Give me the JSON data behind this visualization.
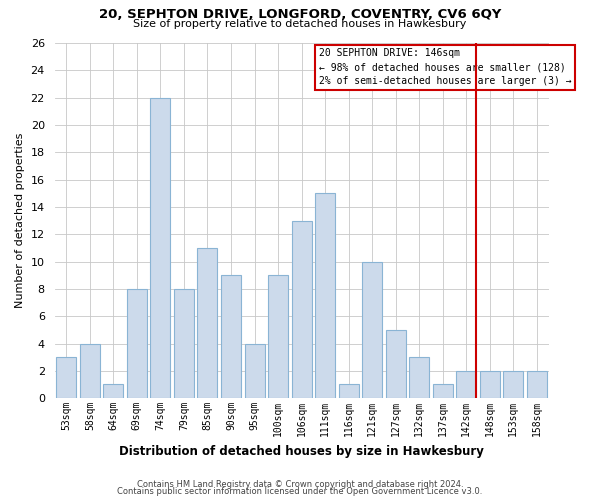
{
  "title": "20, SEPHTON DRIVE, LONGFORD, COVENTRY, CV6 6QY",
  "subtitle": "Size of property relative to detached houses in Hawkesbury",
  "xlabel": "Distribution of detached houses by size in Hawkesbury",
  "ylabel": "Number of detached properties",
  "categories": [
    "53sqm",
    "58sqm",
    "64sqm",
    "69sqm",
    "74sqm",
    "79sqm",
    "85sqm",
    "90sqm",
    "95sqm",
    "100sqm",
    "106sqm",
    "111sqm",
    "116sqm",
    "121sqm",
    "127sqm",
    "132sqm",
    "137sqm",
    "142sqm",
    "148sqm",
    "153sqm",
    "158sqm"
  ],
  "values": [
    3,
    4,
    1,
    8,
    22,
    8,
    11,
    9,
    4,
    9,
    13,
    15,
    1,
    10,
    5,
    3,
    1,
    2,
    2,
    2,
    2
  ],
  "bar_color": "#ccdaeb",
  "bar_edge_color": "#8ab4d4",
  "red_line_index": 17,
  "annotation_line1": "20 SEPHTON DRIVE: 146sqm",
  "annotation_line2": "← 98% of detached houses are smaller (128)",
  "annotation_line3": "2% of semi-detached houses are larger (3) →",
  "red_color": "#cc0000",
  "ylim": [
    0,
    26
  ],
  "yticks": [
    0,
    2,
    4,
    6,
    8,
    10,
    12,
    14,
    16,
    18,
    20,
    22,
    24,
    26
  ],
  "footer1": "Contains HM Land Registry data © Crown copyright and database right 2024.",
  "footer2": "Contains public sector information licensed under the Open Government Licence v3.0.",
  "bg_color": "#ffffff",
  "grid_color": "#c8c8c8"
}
